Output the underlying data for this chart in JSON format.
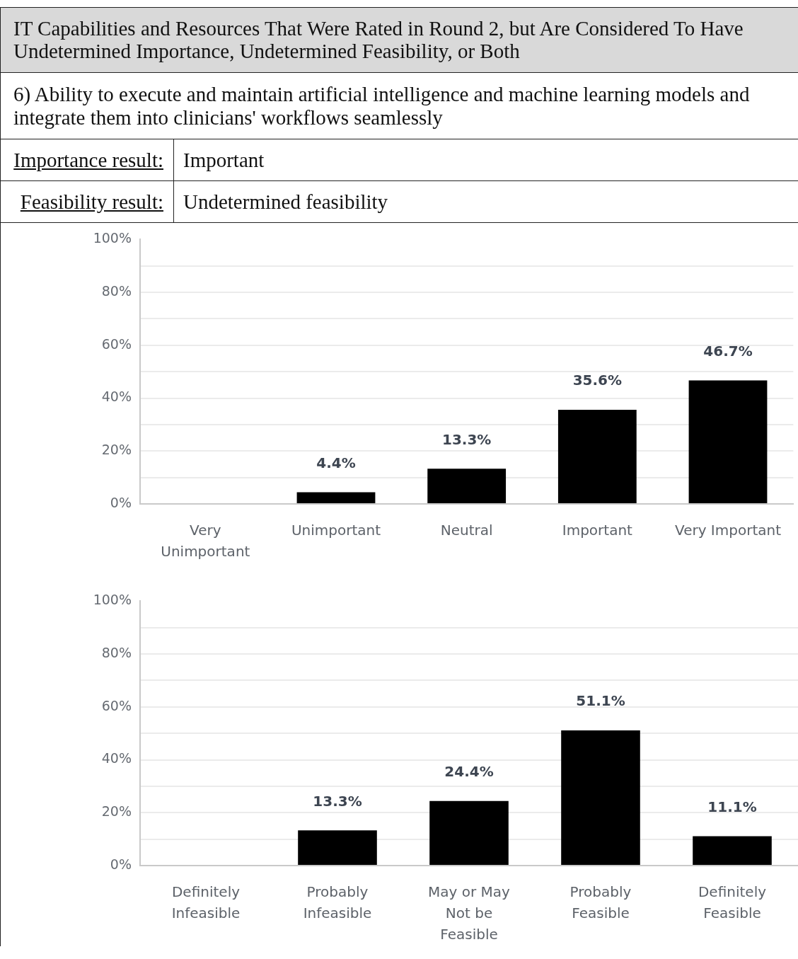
{
  "chart_data": [
    {
      "type": "other",
      "title": "IT Capabilities and Resources That Were Rated in Round 2, but Are Considered To Have Undetermined Importance, Undetermined Feasibility, or Both",
      "subtitle": "6) Ability to execute and maintain artificial intelligence and machine learning models and integrate them into clinicians' workflows seamlessly",
      "annotations": [
        "Importance result:",
        "Important",
        "Feasibility result:",
        "Undetermined feasibility"
      ]
    },
    {
      "type": "bar",
      "categories": [
        "Very Unimportant",
        "Unimportant",
        "Neutral",
        "Important",
        "Very Important"
      ],
      "values": [
        0,
        4.4,
        13.3,
        35.6,
        46.7
      ],
      "value_labels": [
        null,
        "4.4%",
        "13.3%",
        "35.6%",
        "46.7%"
      ],
      "color": "#000000",
      "ylim": [
        0,
        100
      ],
      "yticks": [
        {
          "value": 0,
          "label": "0%"
        },
        {
          "value": 10,
          "label": null
        },
        {
          "value": 20,
          "label": "20%"
        },
        {
          "value": 30,
          "label": null
        },
        {
          "value": 40,
          "label": "40%"
        },
        {
          "value": 50,
          "label": null
        },
        {
          "value": 60,
          "label": "60%"
        },
        {
          "value": 70,
          "label": null
        },
        {
          "value": 80,
          "label": "80%"
        },
        {
          "value": 90,
          "label": null
        },
        {
          "value": 100,
          "label": "100%"
        }
      ],
      "grid": "y"
    },
    {
      "type": "bar",
      "categories": [
        "Definitely Infeasible",
        "Probably Infeasible",
        "May or May Not be Feasible",
        "Probably Feasible",
        "Definitely Feasible"
      ],
      "values": [
        0,
        13.3,
        24.4,
        51.1,
        11.1
      ],
      "value_labels": [
        null,
        "13.3%",
        "24.4%",
        "51.1%",
        "11.1%"
      ],
      "color": "#000000",
      "ylim": [
        0,
        100
      ],
      "yticks": [
        {
          "value": 0,
          "label": "0%"
        },
        {
          "value": 10,
          "label": null
        },
        {
          "value": 20,
          "label": "20%"
        },
        {
          "value": 30,
          "label": null
        },
        {
          "value": 40,
          "label": "40%"
        },
        {
          "value": 50,
          "label": null
        },
        {
          "value": 60,
          "label": "60%"
        },
        {
          "value": 70,
          "label": null
        },
        {
          "value": 80,
          "label": "80%"
        },
        {
          "value": 90,
          "label": null
        },
        {
          "value": 100,
          "label": "100%"
        }
      ],
      "grid": "y"
    }
  ]
}
